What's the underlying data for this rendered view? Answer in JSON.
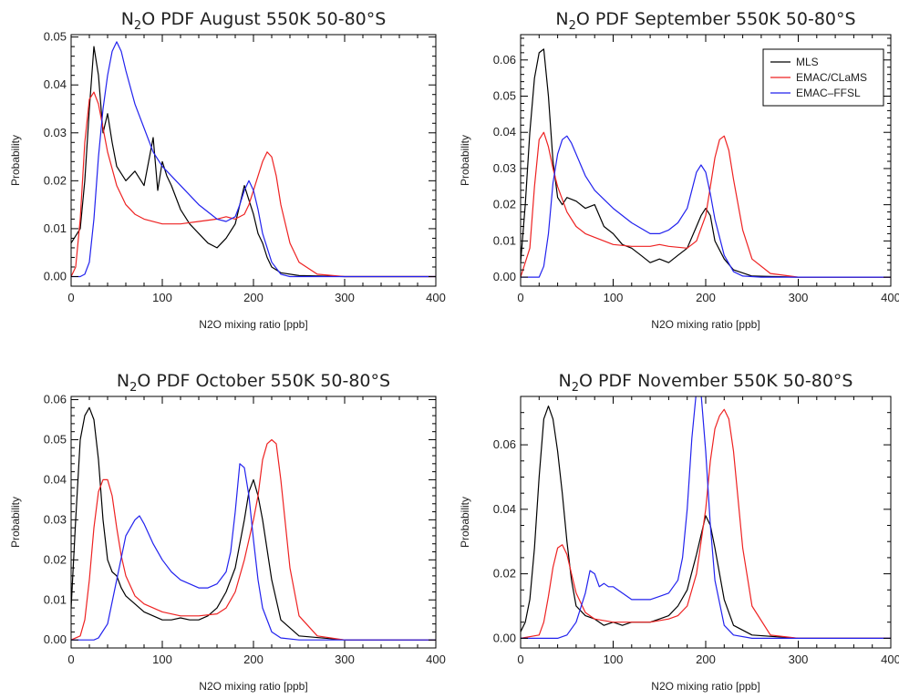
{
  "colors": {
    "MLS": "#000000",
    "EMAC/CLaMS": "#ee2222",
    "EMAC-FFSL": "#2222ee"
  },
  "legend_labels": [
    "MLS",
    "EMAC/CLaMS",
    "EMAC–FFSL"
  ],
  "chart_data": [
    {
      "type": "line",
      "title": "N₂O PDF August 550K 50-80°S",
      "title_parts": {
        "pre": "N",
        "sub": "2",
        "post": "O PDF August 550K 50-80°S"
      },
      "xlabel": "N2O mixing ratio [ppb]",
      "ylabel": "Probability",
      "xlim": [
        0,
        400
      ],
      "ylim": [
        -0.002,
        0.0505
      ],
      "xticks": [
        0,
        100,
        200,
        300,
        400
      ],
      "yticks": [
        0,
        0.01,
        0.02,
        0.03,
        0.04,
        0.05
      ],
      "ytick_labels": [
        "0.00",
        "0.01",
        "0.02",
        "0.03",
        "0.04",
        "0.05"
      ],
      "legend": false,
      "series": [
        {
          "name": "MLS",
          "x": [
            0,
            10,
            15,
            20,
            25,
            30,
            35,
            40,
            45,
            50,
            60,
            70,
            80,
            90,
            95,
            100,
            105,
            110,
            120,
            130,
            140,
            150,
            160,
            170,
            180,
            190,
            195,
            200,
            205,
            210,
            215,
            220,
            230,
            250,
            300,
            400
          ],
          "y": [
            0.007,
            0.01,
            0.02,
            0.035,
            0.048,
            0.042,
            0.03,
            0.034,
            0.028,
            0.023,
            0.02,
            0.022,
            0.019,
            0.029,
            0.018,
            0.024,
            0.021,
            0.019,
            0.014,
            0.011,
            0.009,
            0.007,
            0.006,
            0.008,
            0.011,
            0.019,
            0.016,
            0.013,
            0.009,
            0.007,
            0.004,
            0.002,
            0.0008,
            0.0002,
            0,
            0
          ]
        },
        {
          "name": "EMAC/CLaMS",
          "x": [
            0,
            5,
            10,
            15,
            20,
            25,
            30,
            35,
            40,
            50,
            60,
            70,
            80,
            100,
            120,
            140,
            160,
            170,
            180,
            190,
            195,
            200,
            205,
            210,
            215,
            220,
            225,
            230,
            240,
            250,
            270,
            300,
            400
          ],
          "y": [
            0,
            0.002,
            0.012,
            0.028,
            0.037,
            0.0385,
            0.036,
            0.031,
            0.026,
            0.019,
            0.015,
            0.013,
            0.012,
            0.011,
            0.011,
            0.0115,
            0.012,
            0.0125,
            0.012,
            0.013,
            0.015,
            0.018,
            0.021,
            0.024,
            0.026,
            0.025,
            0.021,
            0.015,
            0.007,
            0.003,
            0.0005,
            0,
            0
          ]
        },
        {
          "name": "EMAC-FFSL",
          "x": [
            0,
            10,
            15,
            20,
            25,
            30,
            35,
            40,
            45,
            50,
            55,
            60,
            70,
            80,
            90,
            100,
            120,
            140,
            160,
            170,
            180,
            185,
            190,
            195,
            200,
            205,
            210,
            220,
            230,
            240,
            260,
            300,
            400
          ],
          "y": [
            0,
            0,
            0.0005,
            0.003,
            0.012,
            0.025,
            0.035,
            0.042,
            0.047,
            0.049,
            0.047,
            0.043,
            0.036,
            0.031,
            0.026,
            0.023,
            0.019,
            0.015,
            0.012,
            0.0115,
            0.0125,
            0.015,
            0.018,
            0.02,
            0.018,
            0.014,
            0.009,
            0.003,
            0.0005,
            0,
            0,
            0,
            0
          ]
        }
      ]
    },
    {
      "type": "line",
      "title": "N₂O PDF September 550K 50-80°S",
      "title_parts": {
        "pre": "N",
        "sub": "2",
        "post": "O PDF September 550K 50-80°S"
      },
      "xlabel": "N2O mixing ratio [ppb]",
      "ylabel": "Probability",
      "xlim": [
        0,
        400
      ],
      "ylim": [
        -0.0025,
        0.067
      ],
      "xticks": [
        0,
        100,
        200,
        300,
        400
      ],
      "yticks": [
        0,
        0.01,
        0.02,
        0.03,
        0.04,
        0.05,
        0.06
      ],
      "ytick_labels": [
        "0.00",
        "0.01",
        "0.02",
        "0.03",
        "0.04",
        "0.05",
        "0.06"
      ],
      "legend": true,
      "series": [
        {
          "name": "MLS",
          "x": [
            0,
            5,
            10,
            15,
            20,
            25,
            30,
            35,
            40,
            45,
            50,
            60,
            70,
            80,
            90,
            100,
            110,
            120,
            130,
            140,
            150,
            160,
            170,
            180,
            190,
            195,
            200,
            205,
            210,
            220,
            230,
            250,
            300,
            400
          ],
          "y": [
            0.004,
            0.02,
            0.04,
            0.055,
            0.062,
            0.063,
            0.05,
            0.032,
            0.022,
            0.02,
            0.022,
            0.021,
            0.019,
            0.02,
            0.014,
            0.012,
            0.009,
            0.008,
            0.006,
            0.004,
            0.005,
            0.004,
            0.006,
            0.008,
            0.014,
            0.017,
            0.019,
            0.017,
            0.01,
            0.005,
            0.002,
            0.0003,
            0,
            0
          ]
        },
        {
          "name": "EMAC/CLaMS",
          "x": [
            0,
            10,
            15,
            20,
            25,
            30,
            35,
            40,
            50,
            60,
            70,
            80,
            100,
            120,
            140,
            150,
            160,
            180,
            190,
            200,
            205,
            210,
            215,
            220,
            225,
            230,
            240,
            250,
            270,
            300,
            400
          ],
          "y": [
            0,
            0.008,
            0.025,
            0.038,
            0.04,
            0.036,
            0.03,
            0.025,
            0.018,
            0.014,
            0.012,
            0.011,
            0.009,
            0.0085,
            0.0085,
            0.009,
            0.0085,
            0.008,
            0.01,
            0.017,
            0.025,
            0.033,
            0.038,
            0.039,
            0.035,
            0.027,
            0.013,
            0.005,
            0.001,
            0,
            0
          ]
        },
        {
          "name": "EMAC-FFSL",
          "x": [
            0,
            20,
            25,
            30,
            35,
            40,
            45,
            50,
            55,
            60,
            70,
            80,
            100,
            120,
            140,
            150,
            160,
            170,
            180,
            185,
            190,
            195,
            200,
            205,
            210,
            220,
            230,
            240,
            260,
            300,
            400
          ],
          "y": [
            0,
            0,
            0.003,
            0.012,
            0.026,
            0.034,
            0.038,
            0.039,
            0.037,
            0.034,
            0.028,
            0.024,
            0.019,
            0.015,
            0.012,
            0.012,
            0.013,
            0.015,
            0.019,
            0.024,
            0.029,
            0.031,
            0.029,
            0.023,
            0.016,
            0.006,
            0.0015,
            0.0003,
            0,
            0,
            0
          ]
        }
      ]
    },
    {
      "type": "line",
      "title": "N₂O PDF October 550K 50-80°S",
      "title_parts": {
        "pre": "N",
        "sub": "2",
        "post": "O PDF October 550K 50-80°S"
      },
      "xlabel": "N2O mixing ratio [ppb]",
      "ylabel": "Probability",
      "xlim": [
        0,
        400
      ],
      "ylim": [
        -0.002,
        0.0608
      ],
      "xticks": [
        0,
        100,
        200,
        300,
        400
      ],
      "yticks": [
        0,
        0.01,
        0.02,
        0.03,
        0.04,
        0.05,
        0.06
      ],
      "ytick_labels": [
        "0.00",
        "0.01",
        "0.02",
        "0.03",
        "0.04",
        "0.05",
        "0.06"
      ],
      "legend": false,
      "series": [
        {
          "name": "MLS",
          "x": [
            0,
            5,
            10,
            15,
            20,
            25,
            30,
            35,
            40,
            45,
            50,
            55,
            60,
            70,
            80,
            90,
            100,
            110,
            120,
            130,
            140,
            150,
            160,
            170,
            180,
            190,
            195,
            200,
            205,
            210,
            220,
            230,
            250,
            300,
            400
          ],
          "y": [
            0.008,
            0.03,
            0.05,
            0.056,
            0.058,
            0.055,
            0.045,
            0.03,
            0.02,
            0.017,
            0.016,
            0.013,
            0.011,
            0.009,
            0.007,
            0.006,
            0.005,
            0.005,
            0.0055,
            0.005,
            0.005,
            0.006,
            0.008,
            0.012,
            0.018,
            0.03,
            0.037,
            0.04,
            0.036,
            0.03,
            0.015,
            0.005,
            0.001,
            0,
            0
          ]
        },
        {
          "name": "EMAC/CLaMS",
          "x": [
            0,
            10,
            15,
            20,
            25,
            30,
            35,
            40,
            45,
            50,
            55,
            60,
            70,
            80,
            100,
            120,
            140,
            160,
            170,
            180,
            190,
            200,
            205,
            210,
            215,
            220,
            225,
            230,
            240,
            250,
            270,
            300,
            400
          ],
          "y": [
            0,
            0.001,
            0.005,
            0.015,
            0.028,
            0.037,
            0.04,
            0.04,
            0.036,
            0.028,
            0.021,
            0.016,
            0.011,
            0.009,
            0.007,
            0.006,
            0.006,
            0.0065,
            0.008,
            0.012,
            0.02,
            0.03,
            0.036,
            0.045,
            0.049,
            0.05,
            0.049,
            0.04,
            0.018,
            0.006,
            0.001,
            0,
            0
          ]
        },
        {
          "name": "EMAC-FFSL",
          "x": [
            0,
            25,
            30,
            40,
            50,
            60,
            70,
            75,
            80,
            90,
            100,
            110,
            120,
            130,
            140,
            150,
            160,
            170,
            175,
            180,
            185,
            190,
            195,
            200,
            205,
            210,
            220,
            230,
            250,
            300,
            400
          ],
          "y": [
            0,
            0,
            0.0005,
            0.004,
            0.015,
            0.026,
            0.03,
            0.031,
            0.029,
            0.024,
            0.02,
            0.017,
            0.015,
            0.014,
            0.013,
            0.013,
            0.014,
            0.017,
            0.022,
            0.032,
            0.044,
            0.043,
            0.036,
            0.025,
            0.015,
            0.008,
            0.002,
            0.0005,
            0,
            0,
            0
          ]
        }
      ]
    },
    {
      "type": "line",
      "title": "N₂O PDF November 550K 50-80°S",
      "title_parts": {
        "pre": "N",
        "sub": "2",
        "post": "O PDF November 550K 50-80°S"
      },
      "xlabel": "N2O mixing ratio [ppb]",
      "ylabel": "Probability",
      "xlim": [
        0,
        400
      ],
      "ylim": [
        -0.003,
        0.075
      ],
      "xticks": [
        0,
        100,
        200,
        300,
        400
      ],
      "yticks": [
        0,
        0.02,
        0.04,
        0.06
      ],
      "ytick_labels": [
        "0.00",
        "0.02",
        "0.04",
        "0.06"
      ],
      "legend": false,
      "series": [
        {
          "name": "MLS",
          "x": [
            0,
            5,
            10,
            15,
            20,
            25,
            30,
            35,
            40,
            45,
            50,
            55,
            60,
            70,
            80,
            90,
            100,
            110,
            120,
            130,
            140,
            150,
            160,
            170,
            180,
            190,
            195,
            200,
            205,
            210,
            220,
            230,
            250,
            300,
            400
          ],
          "y": [
            0.002,
            0.005,
            0.012,
            0.028,
            0.05,
            0.068,
            0.072,
            0.068,
            0.058,
            0.045,
            0.03,
            0.018,
            0.01,
            0.007,
            0.006,
            0.004,
            0.005,
            0.004,
            0.005,
            0.005,
            0.005,
            0.006,
            0.007,
            0.01,
            0.015,
            0.026,
            0.032,
            0.038,
            0.035,
            0.028,
            0.012,
            0.004,
            0.001,
            0,
            0
          ]
        },
        {
          "name": "EMAC/CLaMS",
          "x": [
            0,
            20,
            25,
            30,
            35,
            40,
            45,
            50,
            55,
            60,
            70,
            80,
            100,
            120,
            140,
            160,
            170,
            180,
            190,
            200,
            205,
            210,
            215,
            220,
            225,
            230,
            240,
            250,
            270,
            300,
            400
          ],
          "y": [
            0,
            0.001,
            0.005,
            0.013,
            0.022,
            0.028,
            0.029,
            0.026,
            0.02,
            0.014,
            0.008,
            0.006,
            0.005,
            0.005,
            0.005,
            0.006,
            0.007,
            0.01,
            0.02,
            0.04,
            0.055,
            0.065,
            0.069,
            0.071,
            0.068,
            0.058,
            0.028,
            0.01,
            0.001,
            0,
            0
          ]
        },
        {
          "name": "EMAC-FFSL",
          "x": [
            0,
            40,
            50,
            60,
            70,
            75,
            80,
            85,
            90,
            95,
            100,
            110,
            120,
            130,
            140,
            150,
            160,
            170,
            175,
            180,
            185,
            190,
            195,
            200,
            205,
            210,
            220,
            230,
            250,
            300,
            400
          ],
          "y": [
            0,
            0,
            0.001,
            0.005,
            0.014,
            0.021,
            0.02,
            0.016,
            0.017,
            0.016,
            0.016,
            0.014,
            0.012,
            0.012,
            0.012,
            0.013,
            0.014,
            0.018,
            0.025,
            0.04,
            0.062,
            0.077,
            0.076,
            0.058,
            0.035,
            0.018,
            0.004,
            0.001,
            0,
            0,
            0
          ]
        }
      ]
    }
  ]
}
